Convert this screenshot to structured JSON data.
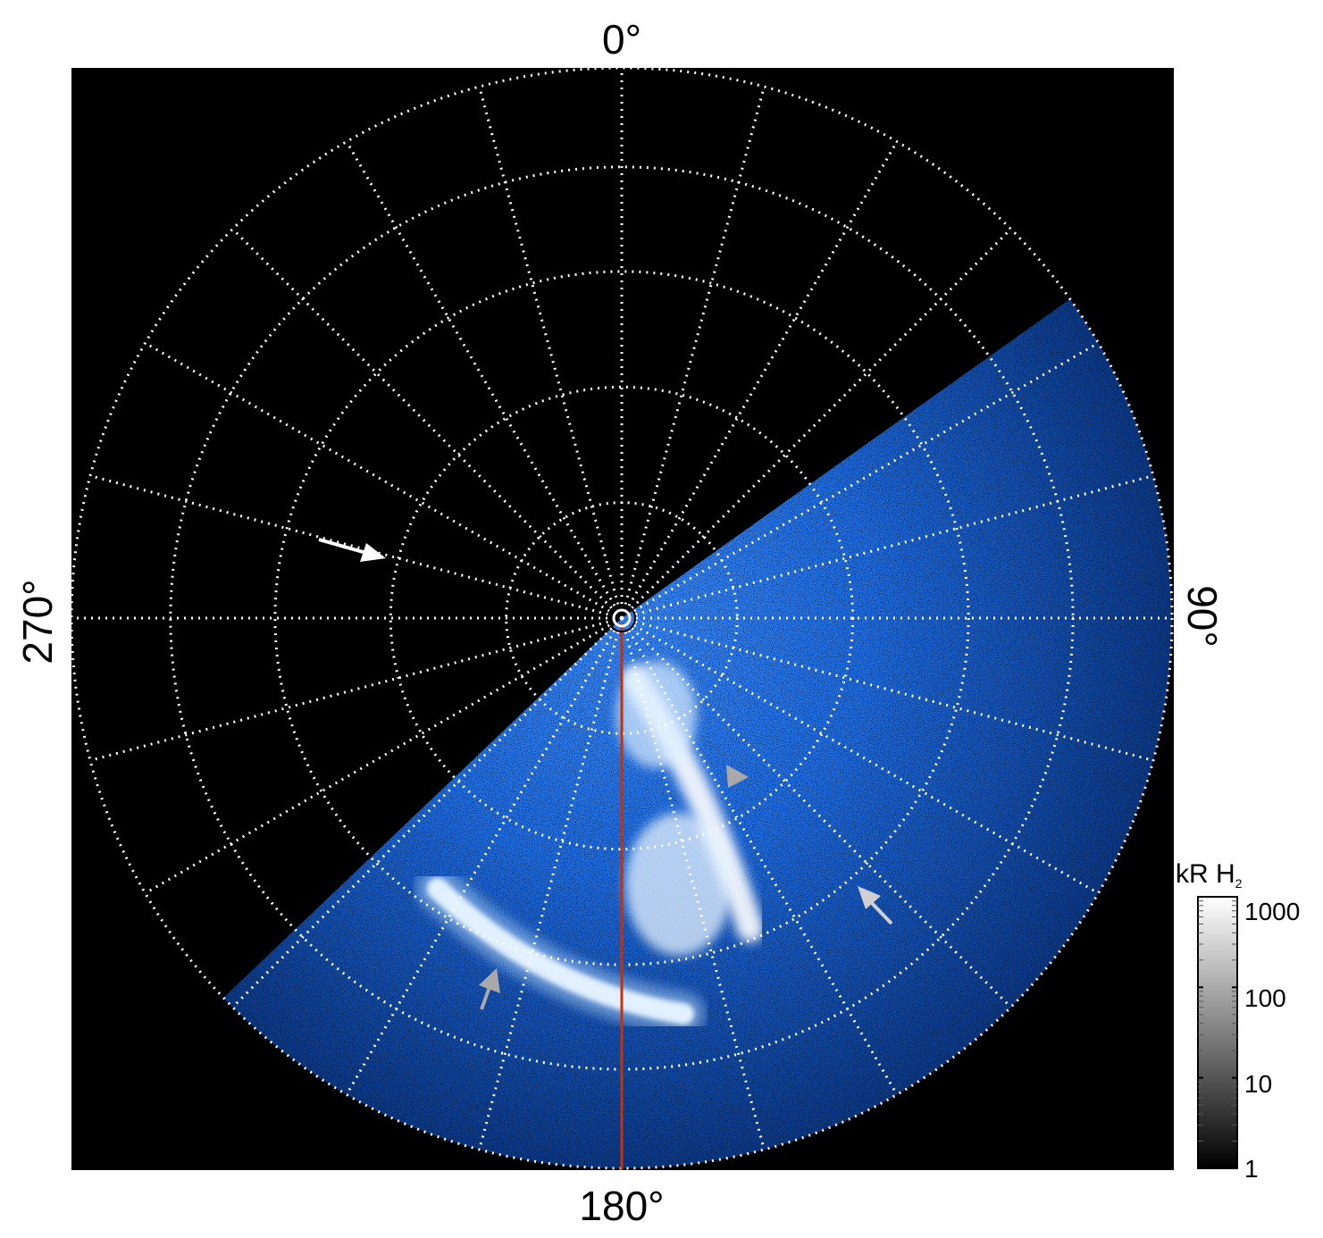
{
  "figure": {
    "labels": {
      "top": "0°",
      "bottom": "180°",
      "left": "270°",
      "right": "90°"
    },
    "colorbar": {
      "title_main": "kR H",
      "title_sub": "2",
      "ticks": [
        "1000",
        "100",
        "10",
        "1"
      ],
      "scale": "log",
      "range": [
        1,
        1000
      ],
      "colors": [
        "#000000",
        "#ffffff"
      ]
    },
    "colors": {
      "background": "#000000",
      "grid": "#ffffff",
      "emission_low": "#0b2a66",
      "emission_mid": "#1a78ff",
      "emission_high": "#ffffff",
      "meridian_line": "#c4320a",
      "arrow_white": "#ffffff",
      "arrow_gray": "#a9a9a9"
    },
    "icons": [
      "arrow-white",
      "arrow-gray",
      "arrowhead-gray",
      "north-pole-marker"
    ]
  }
}
